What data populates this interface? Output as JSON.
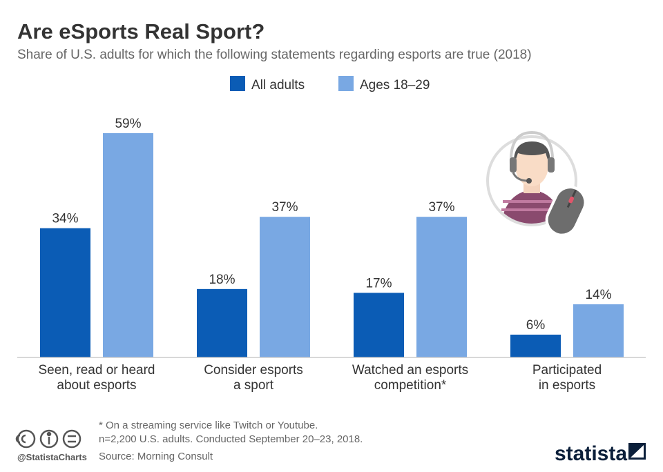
{
  "chart_data": {
    "type": "bar",
    "title": "Are eSports Real Sport?",
    "subtitle": "Share of U.S. adults for which the following statements regarding esports are true (2018)",
    "categories": [
      [
        "Seen, read or heard",
        "about esports"
      ],
      [
        "Consider esports",
        "a sport"
      ],
      [
        "Watched an esports",
        "competition*"
      ],
      [
        "Participated",
        "in esports"
      ]
    ],
    "series": [
      {
        "name": "All adults",
        "color": "#0b5cb5",
        "values": [
          34,
          18,
          17,
          6
        ],
        "value_labels": [
          "34%",
          "18%",
          "17%",
          "6%"
        ]
      },
      {
        "name": "Ages 18–29",
        "color": "#79a8e3",
        "values": [
          59,
          37,
          37,
          14
        ],
        "value_labels": [
          "59%",
          "37%",
          "37%",
          "14%"
        ]
      }
    ],
    "notes": [
      "* On a streaming service like Twitch or Youtube.",
      "n=2,200 U.S. adults. Conducted September 20–23, 2018."
    ],
    "source": "Source: Morning Consult",
    "credit": "@StatistaCharts",
    "brand": "statista"
  }
}
